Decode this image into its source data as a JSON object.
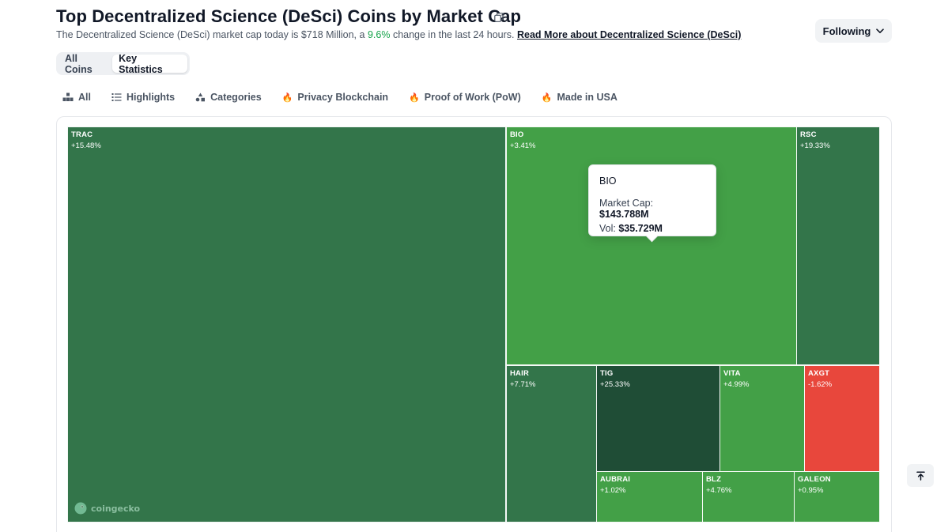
{
  "header": {
    "title": "Top Decentralized Science (DeSci) Coins by Market Cap",
    "subtitle_pre": "The Decentralized Science (DeSci) market cap today is $718 Million, a",
    "subtitle_pct": "9.6%",
    "subtitle_post": "change in the last 24 hours.",
    "read_more": "Read More about Decentralized Science (DeSci)",
    "following_label": "Following"
  },
  "view_toggle": {
    "all_coins": "All Coins",
    "key_statistics": "Key Statistics"
  },
  "filters": {
    "all": "All",
    "highlights": "Highlights",
    "categories": "Categories",
    "privacy": "Privacy Blockchain",
    "pow": "Proof of Work (PoW)",
    "usa": "Made in USA",
    "fire_icon": "🔥"
  },
  "colors": {
    "green_dark": "#33754a",
    "green_light": "#43a047",
    "green_darkest": "#1f4d36",
    "red": "#e8473c"
  },
  "treemap": {
    "tiles": [
      {
        "symbol": "TRAC",
        "change": "+15.48%"
      },
      {
        "symbol": "BIO",
        "change": "+3.41%"
      },
      {
        "symbol": "RSC",
        "change": "+19.33%"
      },
      {
        "symbol": "HAIR",
        "change": "+7.71%"
      },
      {
        "symbol": "TIG",
        "change": "+25.33%"
      },
      {
        "symbol": "VITA",
        "change": "+4.99%"
      },
      {
        "symbol": "AXGT",
        "change": "-1.62%"
      },
      {
        "symbol": "AUBRAI",
        "change": "+1.02%"
      },
      {
        "symbol": "BLZ",
        "change": "+4.76%"
      },
      {
        "symbol": "GALEON",
        "change": "+0.95%"
      }
    ]
  },
  "tooltip": {
    "title": "BIO",
    "market_cap_label": "Market Cap:",
    "market_cap_value": "$143.788M",
    "vol_label": "Vol:",
    "vol_value": "$35.729M"
  },
  "watermark": "coingecko"
}
